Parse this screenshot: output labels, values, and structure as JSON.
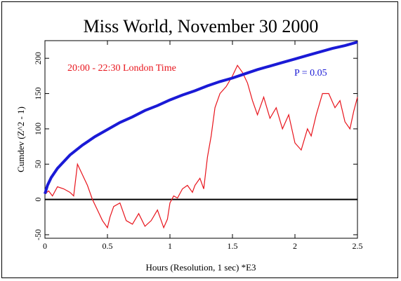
{
  "chart_data": {
    "type": "line",
    "title": "Miss World, November 30 2000",
    "xlabel": "Hours (Resolution, 1 sec)   *E3",
    "ylabel": "Cumdev (Z^2 - 1)",
    "xlim": [
      0,
      2.5
    ],
    "ylim": [
      -55,
      225
    ],
    "x_ticks": [
      "0",
      "0.5",
      "1",
      "1.5",
      "2",
      "2.5"
    ],
    "y_ticks": [
      "-50",
      "0",
      "50",
      "100",
      "150",
      "200"
    ],
    "x_tick_values": [
      0,
      0.5,
      1,
      1.5,
      2,
      2.5
    ],
    "y_tick_values": [
      -50,
      0,
      50,
      100,
      150,
      200
    ],
    "annotations": [
      {
        "text": "20:00 - 22:30 London Time",
        "color": "#e8141c"
      },
      {
        "text": "P = 0.05",
        "color": "#1a1ad6"
      }
    ],
    "series": [
      {
        "name": "",
        "color": "#e8141c",
        "x": [
          0,
          0.03,
          0.06,
          0.1,
          0.15,
          0.2,
          0.23,
          0.26,
          0.3,
          0.34,
          0.38,
          0.42,
          0.46,
          0.5,
          0.52,
          0.55,
          0.6,
          0.65,
          0.7,
          0.75,
          0.8,
          0.85,
          0.9,
          0.95,
          0.98,
          1.0,
          1.03,
          1.06,
          1.1,
          1.14,
          1.18,
          1.2,
          1.24,
          1.27,
          1.3,
          1.33,
          1.36,
          1.4,
          1.45,
          1.5,
          1.54,
          1.58,
          1.62,
          1.66,
          1.7,
          1.75,
          1.8,
          1.85,
          1.9,
          1.95,
          2.0,
          2.05,
          2.1,
          2.13,
          2.17,
          2.22,
          2.27,
          2.32,
          2.36,
          2.4,
          2.44,
          2.47,
          2.5
        ],
        "y": [
          8,
          12,
          5,
          18,
          15,
          10,
          5,
          50,
          35,
          20,
          0,
          -15,
          -30,
          -40,
          -25,
          -10,
          -5,
          -30,
          -35,
          -20,
          -38,
          -30,
          -15,
          -40,
          -28,
          -5,
          5,
          2,
          15,
          20,
          10,
          20,
          30,
          15,
          60,
          90,
          130,
          150,
          160,
          175,
          190,
          180,
          165,
          140,
          120,
          145,
          115,
          130,
          100,
          120,
          80,
          70,
          100,
          90,
          120,
          150,
          150,
          130,
          140,
          110,
          100,
          125,
          145
        ]
      },
      {
        "name": "",
        "color": "#1a1ad6",
        "x": [
          0,
          0.02,
          0.05,
          0.1,
          0.2,
          0.3,
          0.4,
          0.5,
          0.6,
          0.7,
          0.8,
          0.9,
          1.0,
          1.1,
          1.2,
          1.3,
          1.4,
          1.5,
          1.6,
          1.7,
          1.8,
          1.9,
          2.0,
          2.1,
          2.2,
          2.3,
          2.4,
          2.5
        ],
        "y": [
          8,
          20,
          31,
          44,
          63,
          77,
          89,
          99,
          109,
          117,
          126,
          133,
          141,
          148,
          154,
          161,
          167,
          172,
          178,
          184,
          189,
          194,
          199,
          204,
          209,
          214,
          218,
          223
        ]
      }
    ],
    "reference_line": {
      "y": 0,
      "color": "#000000"
    },
    "grid": false,
    "legend": "none"
  }
}
